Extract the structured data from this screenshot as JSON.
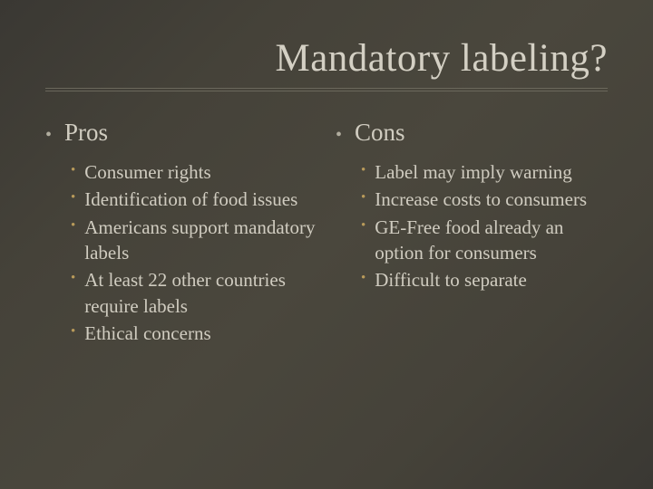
{
  "slide": {
    "title": "Mandatory labeling?",
    "background_gradient": [
      "#3a3833",
      "#454239",
      "#4a473d",
      "#454239",
      "#3a3833"
    ],
    "text_color": "#d0ccc0",
    "accent_bullet_color": "#b89a5a",
    "underline_color": "#6b685c",
    "title_fontsize": 43,
    "header_fontsize": 27,
    "item_fontsize": 21,
    "columns": [
      {
        "header": "Pros",
        "items": [
          "Consumer rights",
          "Identification of food issues",
          "Americans support mandatory labels",
          "At least 22 other countries require labels",
          "Ethical concerns"
        ]
      },
      {
        "header": "Cons",
        "items": [
          "Label may imply warning",
          "Increase costs to consumers",
          "GE-Free food already an option for consumers",
          "Difficult to separate"
        ]
      }
    ]
  }
}
